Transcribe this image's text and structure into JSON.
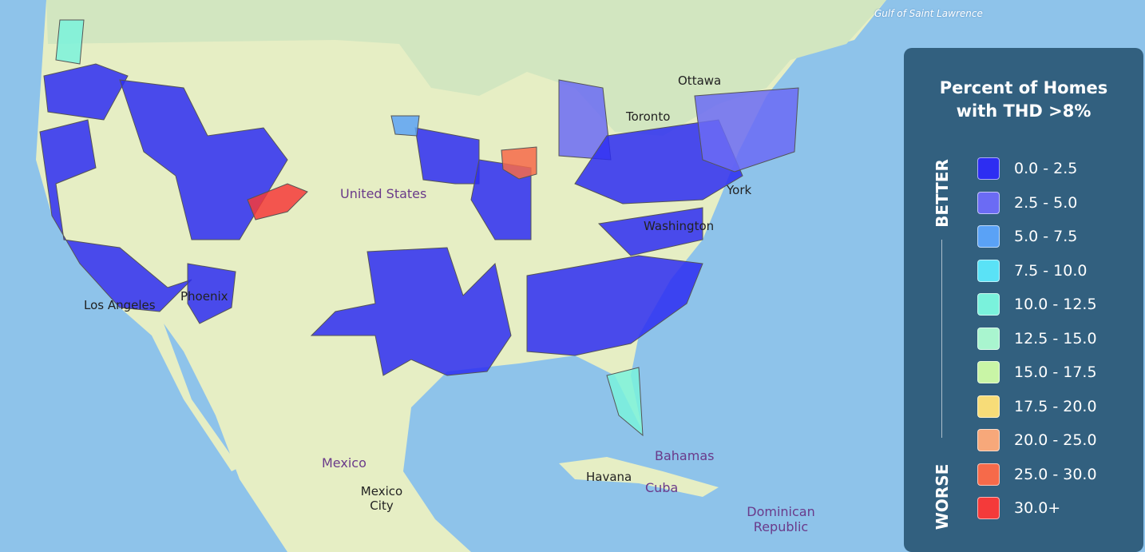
{
  "legend": {
    "title": "Percent of Homes with THD >8%",
    "better": "BETTER",
    "worse": "WORSE",
    "items": [
      {
        "label": "0.0 - 2.5",
        "color": "#2d2df2"
      },
      {
        "label": "2.5 - 5.0",
        "color": "#6b6bf4"
      },
      {
        "label": "5.0 - 7.5",
        "color": "#5aa2f6"
      },
      {
        "label": "7.5 - 10.0",
        "color": "#5ae2f6"
      },
      {
        "label": "10.0 - 12.5",
        "color": "#7af2dc"
      },
      {
        "label": "12.5 - 15.0",
        "color": "#a9f5cf"
      },
      {
        "label": "15.0 - 17.5",
        "color": "#c9f5a6"
      },
      {
        "label": "17.5 - 20.0",
        "color": "#f7dc78"
      },
      {
        "label": "20.0 - 25.0",
        "color": "#f7a87a"
      },
      {
        "label": "25.0 - 30.0",
        "color": "#f66a4a"
      },
      {
        "label": "30.0+",
        "color": "#f43a3a"
      }
    ]
  },
  "places": [
    "Gulf of Saint Lawrence",
    "Ottawa",
    "Toronto",
    "United States",
    "York",
    "Washington",
    "Los Angeles",
    "Phoenix",
    "Mexico",
    "Mexico City",
    "Havana",
    "Cuba",
    "Bahamas",
    "Dominican Republic"
  ]
}
